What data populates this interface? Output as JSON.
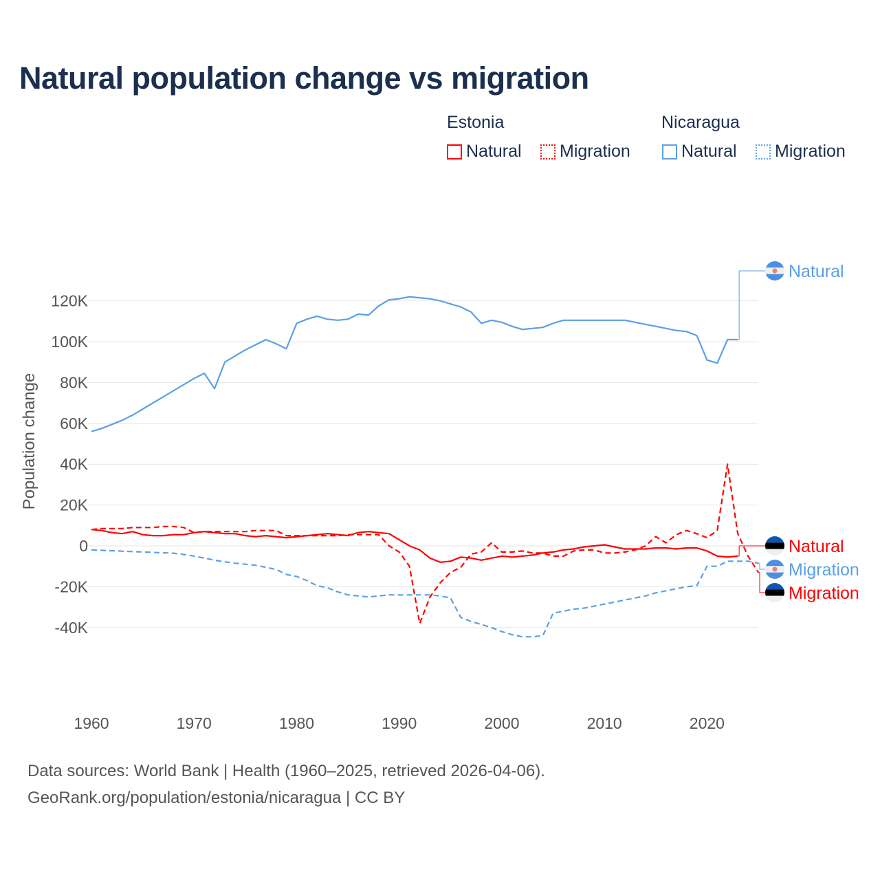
{
  "title": "Natural population change vs migration",
  "legend": {
    "groups": [
      {
        "name": "Estonia",
        "items": [
          "Natural",
          "Migration"
        ],
        "color": "#ff0000"
      },
      {
        "name": "Nicaragua",
        "items": [
          "Natural",
          "Migration"
        ],
        "color": "#5aa0e6"
      }
    ]
  },
  "footer": {
    "line1": "Data sources: World Bank | Health (1960–2025, retrieved 2026-04-06).",
    "line2": "GeoRank.org/population/estonia/nicaragua | CC BY"
  },
  "chart_data": {
    "type": "line",
    "title": "Natural population change vs migration",
    "xlabel": "",
    "ylabel": "Population change",
    "xlim": [
      1960,
      2025
    ],
    "ylim": [
      -50000,
      125000
    ],
    "xticks": [
      1960,
      1970,
      1980,
      1990,
      2000,
      2010,
      2020
    ],
    "xtick_labels": [
      "1960",
      "1970",
      "1980",
      "1990",
      "2000",
      "2010",
      "2020"
    ],
    "yticks": [
      -40000,
      -20000,
      0,
      20000,
      40000,
      60000,
      80000,
      100000,
      120000
    ],
    "ytick_labels": [
      "-40K",
      "-20K",
      "0",
      "20K",
      "40K",
      "60K",
      "80K",
      "100K",
      "120K"
    ],
    "grid": true,
    "legend_position": "top-right",
    "start_year": 1960,
    "series": [
      {
        "name": "Nicaragua Natural",
        "label": "Natural",
        "color": "#5aa0e6",
        "dashed": false,
        "values": [
          56,
          57.5,
          59.5,
          61.5,
          64,
          67,
          70,
          73,
          76,
          79,
          82,
          84.5,
          77,
          90,
          93,
          96,
          98.5,
          101,
          99,
          96.5,
          109,
          111,
          112.5,
          111,
          110.5,
          111,
          113.5,
          113,
          117.5,
          120.5,
          121,
          122,
          121.5,
          121,
          120,
          118.5,
          117,
          114.5,
          109,
          110.5,
          109.5,
          107.5,
          106,
          106.5,
          107,
          109,
          110.5,
          110.5,
          110.5,
          110.5,
          110.5,
          110.5,
          110.5,
          109.5,
          108.5,
          107.5,
          106.5,
          105.5,
          105,
          103,
          91,
          89.5,
          101,
          101
        ]
      },
      {
        "name": "Nicaragua Migration",
        "label": "Migration",
        "color": "#5aa0e6",
        "dashed": true,
        "values": [
          -2,
          -2.2,
          -2.4,
          -2.6,
          -2.8,
          -3,
          -3.2,
          -3.4,
          -3.6,
          -4.2,
          -5,
          -6,
          -7,
          -7.8,
          -8.5,
          -9,
          -9.5,
          -10.5,
          -11.5,
          -14,
          -15,
          -17,
          -19.5,
          -20.5,
          -22.5,
          -24,
          -24.5,
          -25,
          -24.5,
          -24,
          -24,
          -24,
          -24,
          -24,
          -24.5,
          -25.5,
          -35,
          -37,
          -38.5,
          -40,
          -42,
          -43.5,
          -44.5,
          -44.5,
          -44,
          -33,
          -32,
          -31,
          -30.5,
          -29.5,
          -28.5,
          -27.5,
          -26.5,
          -25.5,
          -24.5,
          -23,
          -22,
          -21,
          -20,
          -19.5,
          -10,
          -10,
          -7.5,
          -7.5,
          -7.5,
          -8.5
        ]
      },
      {
        "name": "Estonia Natural",
        "label": "Natural",
        "color": "#ff0000",
        "dashed": false,
        "values": [
          8,
          7.5,
          6.5,
          6,
          7,
          5.5,
          5,
          5,
          5.5,
          5.5,
          6.5,
          7,
          6.5,
          6,
          6,
          5,
          4.5,
          5,
          4.5,
          4,
          4.5,
          5,
          5.5,
          6,
          5.5,
          5,
          6.5,
          7,
          6.5,
          6,
          3,
          0,
          -2,
          -6,
          -8,
          -7.5,
          -5.5,
          -6,
          -7,
          -6,
          -5,
          -5.5,
          -5,
          -4.5,
          -3.5,
          -3,
          -2,
          -1.5,
          -0.5,
          0,
          0.5,
          -0.5,
          -1.5,
          -1.5,
          -1.5,
          -1,
          -1,
          -1.5,
          -1,
          -1,
          -2.5,
          -5,
          -5.5,
          -5
        ]
      },
      {
        "name": "Estonia Migration",
        "label": "Migration",
        "color": "#ff0000",
        "dashed": true,
        "values": [
          8,
          8.5,
          8.5,
          8.5,
          9,
          9,
          9,
          9.5,
          9.5,
          9,
          6.5,
          7,
          7,
          7,
          7,
          7,
          7.5,
          7.5,
          7.5,
          5,
          5,
          5,
          5,
          5,
          5,
          5.5,
          5.5,
          5.5,
          5.5,
          0,
          -3,
          -10,
          -38,
          -25,
          -18,
          -13,
          -10.5,
          -4,
          -3,
          1.5,
          -3,
          -3,
          -2.5,
          -3.5,
          -3.5,
          -5,
          -5,
          -2.5,
          -2,
          -2,
          -3.5,
          -3.5,
          -3,
          -2,
          0,
          4.5,
          1.5,
          5.5,
          7.5,
          6,
          4,
          7.5,
          40,
          6,
          -5,
          -13
        ]
      }
    ],
    "value_unit": "thousands"
  }
}
